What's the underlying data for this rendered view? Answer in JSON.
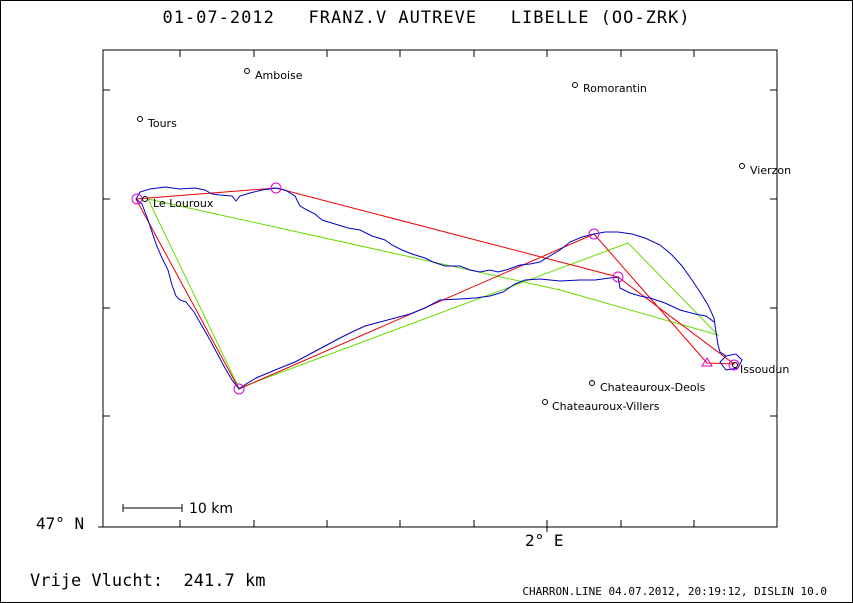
{
  "header": {
    "date": "01-07-2012",
    "pilot": "FRANZ.V AUTREVE",
    "glider": "LIBELLE (OO-ZRK)"
  },
  "axes": {
    "lat_label": "47° N",
    "lon_label": "2° E"
  },
  "scale": {
    "label": "10 km"
  },
  "distance": {
    "label": "Vrije Vlucht:",
    "value": "241.7 km"
  },
  "footer": "CHARRON.LINE 04.07.2012, 20:19:12, DISLIN 10.0",
  "places": [
    {
      "id": "amboise",
      "name": "Amboise"
    },
    {
      "id": "tours",
      "name": "Tours"
    },
    {
      "id": "romorantin",
      "name": "Romorantin"
    },
    {
      "id": "vierzon",
      "name": "Vierzon"
    },
    {
      "id": "le-louroux",
      "name": "Le Louroux"
    },
    {
      "id": "issoudun",
      "name": "Issoudun"
    },
    {
      "id": "chateauroux-deols",
      "name": "Chateauroux-Deols"
    },
    {
      "id": "chateauroux-villers",
      "name": "Chateauroux-Villers"
    }
  ],
  "colors": {
    "track": "#0000cc",
    "task_line": "#ee0000",
    "optimized_line": "#66dd00",
    "turnpoint": "#dd00dd"
  }
}
